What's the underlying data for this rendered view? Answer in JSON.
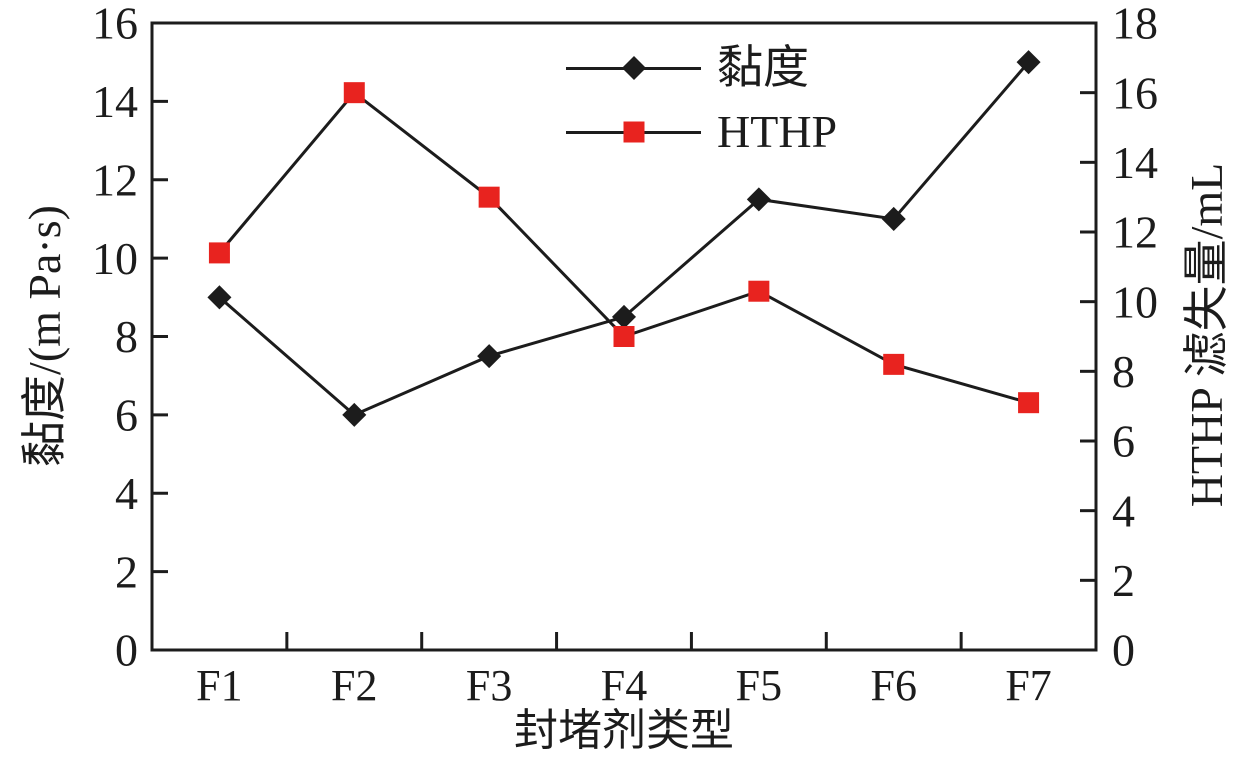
{
  "colors": {
    "line": "#1c1c1c",
    "viscosity_marker": "#1c1c1c",
    "hthp_marker": "#e8231f",
    "background": "#ffffff"
  },
  "chart_data": {
    "type": "line",
    "title": "",
    "categories": [
      "F1",
      "F2",
      "F3",
      "F4",
      "F5",
      "F6",
      "F7"
    ],
    "series": [
      {
        "name": "黏度",
        "axis": "left",
        "marker": "diamond",
        "marker_color": "#1c1c1c",
        "line_color": "#1c1c1c",
        "values": [
          9.0,
          6.0,
          7.5,
          8.5,
          11.5,
          11.0,
          15.0
        ]
      },
      {
        "name": "HTHP",
        "axis": "right",
        "marker": "square",
        "marker_color": "#e8231f",
        "line_color": "#1c1c1c",
        "values": [
          11.4,
          16.0,
          13.0,
          9.0,
          10.3,
          8.2,
          7.1
        ]
      }
    ],
    "axes": {
      "left": {
        "label": "黏度/(m Pa·s)",
        "min": 0,
        "max": 16,
        "step": 2
      },
      "right": {
        "label": "HTHP 滤失量/mL",
        "min": 0,
        "max": 18,
        "step": 2
      },
      "x": {
        "label": "封堵剂类型"
      }
    },
    "legend": {
      "position": "top-center",
      "entries": [
        "黏度",
        "HTHP"
      ]
    },
    "grid": false
  }
}
